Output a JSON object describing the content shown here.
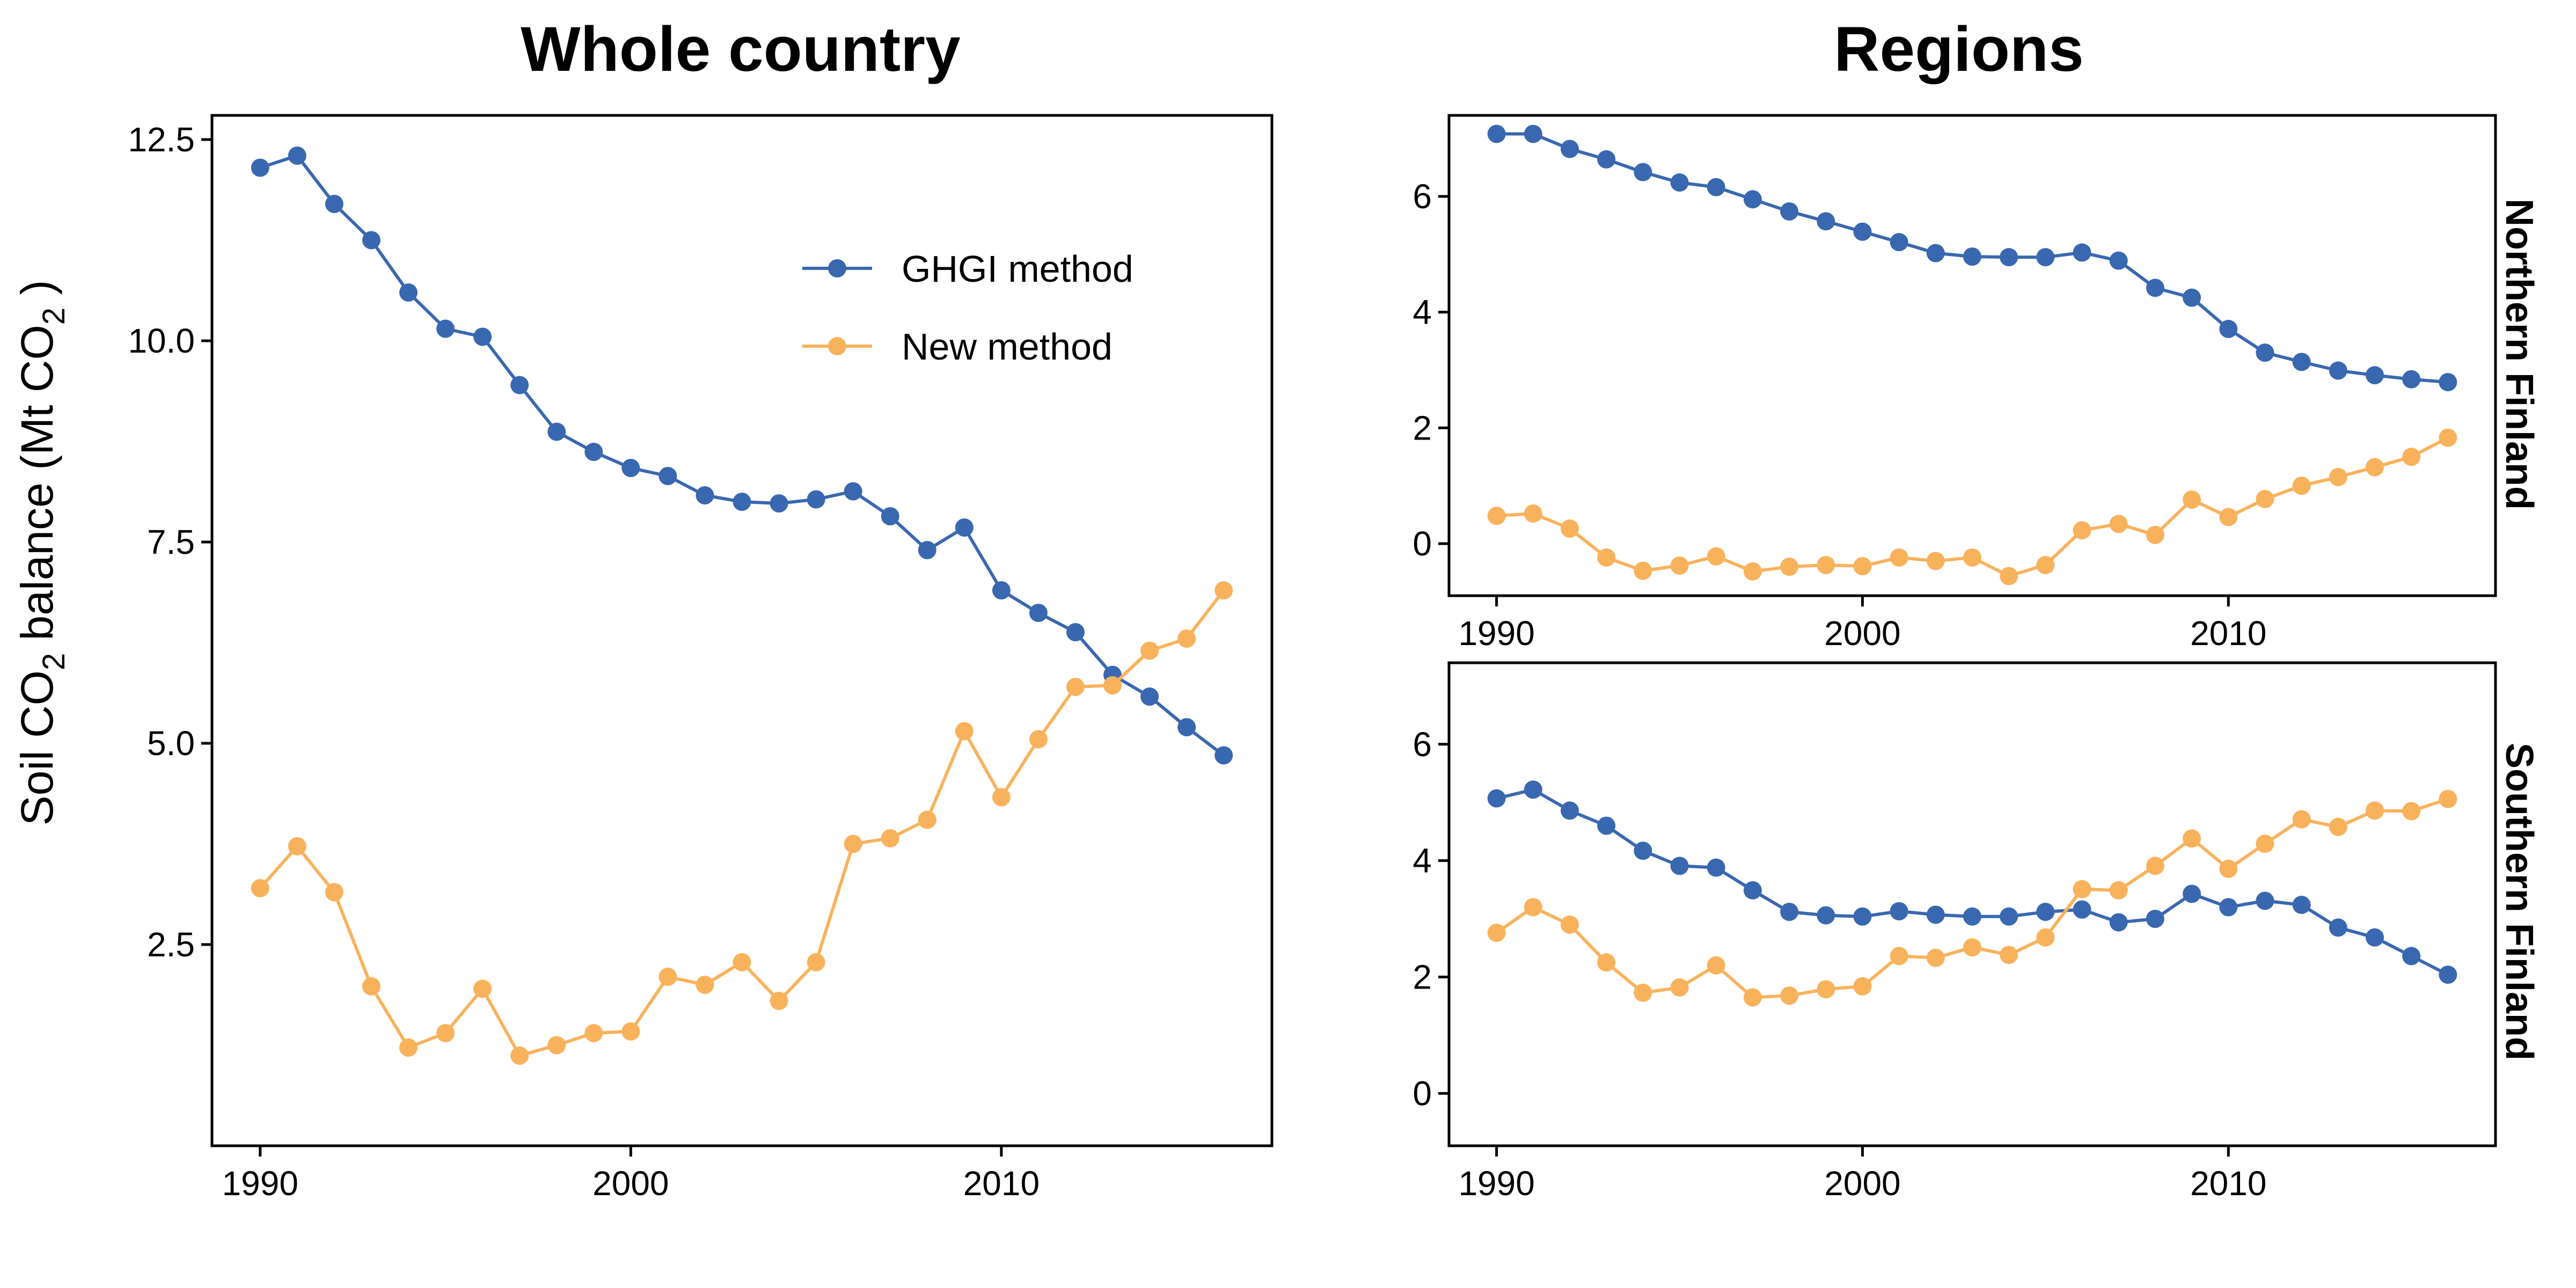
{
  "chart_data": [
    {
      "type": "line",
      "title": "Whole country",
      "ylabel": "Soil CO2 balance (Mt  CO2 )",
      "xlabel": "",
      "xlim": [
        1988.7,
        2017.3
      ],
      "ylim": [
        0.0,
        12.8
      ],
      "xticks": [
        1990,
        2000,
        2010
      ],
      "yticks": [
        2.5,
        5.0,
        7.5,
        10.0,
        12.5
      ],
      "ytick_labels": [
        "2.5",
        "5.0",
        "7.5",
        "10.0",
        "12.5"
      ],
      "legend_position": "top-right",
      "x": [
        1990,
        1991,
        1992,
        1993,
        1994,
        1995,
        1996,
        1997,
        1998,
        1999,
        2000,
        2001,
        2002,
        2003,
        2004,
        2005,
        2006,
        2007,
        2008,
        2009,
        2010,
        2011,
        2012,
        2013,
        2014,
        2015,
        2016
      ],
      "series": [
        {
          "name": "GHGI method",
          "color": "#3a68b0",
          "values": [
            12.15,
            12.3,
            11.7,
            11.25,
            10.6,
            10.15,
            10.05,
            9.45,
            8.87,
            8.62,
            8.42,
            8.32,
            8.08,
            8.0,
            7.98,
            8.03,
            8.13,
            7.82,
            7.4,
            7.68,
            6.9,
            6.62,
            6.38,
            5.85,
            5.58,
            5.2,
            4.85
          ]
        },
        {
          "name": "New method",
          "color": "#f9b25c",
          "values": [
            3.2,
            3.72,
            3.15,
            1.98,
            1.22,
            1.4,
            1.95,
            1.12,
            1.25,
            1.4,
            1.42,
            2.1,
            2.0,
            2.28,
            1.8,
            2.28,
            3.75,
            3.82,
            4.05,
            5.15,
            4.33,
            5.05,
            5.7,
            5.72,
            6.15,
            6.3,
            6.9
          ]
        }
      ]
    },
    {
      "type": "line",
      "group_title": "Regions",
      "title": "Northern Finland",
      "xlim": [
        1988.7,
        2017.3
      ],
      "ylim": [
        -0.9,
        7.4
      ],
      "xticks": [
        1990,
        2000,
        2010
      ],
      "yticks": [
        0,
        2,
        4,
        6
      ],
      "ytick_labels": [
        "0",
        "2",
        "4",
        "6"
      ],
      "x": [
        1990,
        1991,
        1992,
        1993,
        1994,
        1995,
        1996,
        1997,
        1998,
        1999,
        2000,
        2001,
        2002,
        2003,
        2004,
        2005,
        2006,
        2007,
        2008,
        2009,
        2010,
        2011,
        2012,
        2013,
        2014,
        2015,
        2016
      ],
      "series": [
        {
          "name": "GHGI method",
          "color": "#3a68b0",
          "values": [
            7.08,
            7.08,
            6.82,
            6.64,
            6.42,
            6.24,
            6.16,
            5.95,
            5.74,
            5.57,
            5.39,
            5.21,
            5.02,
            4.96,
            4.95,
            4.95,
            5.03,
            4.89,
            4.42,
            4.25,
            3.71,
            3.3,
            3.14,
            2.99,
            2.91,
            2.84,
            2.79
          ]
        },
        {
          "name": "New method",
          "color": "#f9b25c",
          "values": [
            0.48,
            0.52,
            0.26,
            -0.24,
            -0.47,
            -0.38,
            -0.22,
            -0.48,
            -0.4,
            -0.37,
            -0.39,
            -0.24,
            -0.3,
            -0.24,
            -0.56,
            -0.37,
            0.23,
            0.34,
            0.15,
            0.76,
            0.46,
            0.77,
            1.0,
            1.15,
            1.32,
            1.5,
            1.83
          ]
        }
      ]
    },
    {
      "type": "line",
      "group_title": "Regions",
      "title": "Southern Finland",
      "xlim": [
        1988.7,
        2017.3
      ],
      "ylim": [
        -0.9,
        7.4
      ],
      "xticks": [
        1990,
        2000,
        2010
      ],
      "yticks": [
        0,
        2,
        4,
        6
      ],
      "ytick_labels": [
        "0",
        "2",
        "4",
        "6"
      ],
      "x": [
        1990,
        1991,
        1992,
        1993,
        1994,
        1995,
        1996,
        1997,
        1998,
        1999,
        2000,
        2001,
        2002,
        2003,
        2004,
        2005,
        2006,
        2007,
        2008,
        2009,
        2010,
        2011,
        2012,
        2013,
        2014,
        2015,
        2016
      ],
      "series": [
        {
          "name": "GHGI method",
          "color": "#3a68b0",
          "values": [
            5.07,
            5.22,
            4.86,
            4.6,
            4.17,
            3.91,
            3.88,
            3.49,
            3.12,
            3.06,
            3.04,
            3.13,
            3.07,
            3.04,
            3.04,
            3.12,
            3.16,
            2.94,
            3.0,
            3.43,
            3.2,
            3.31,
            3.24,
            2.85,
            2.68,
            2.36,
            2.04
          ]
        },
        {
          "name": "New method",
          "color": "#f9b25c",
          "values": [
            2.76,
            3.2,
            2.9,
            2.25,
            1.73,
            1.82,
            2.2,
            1.65,
            1.68,
            1.79,
            1.84,
            2.36,
            2.33,
            2.51,
            2.38,
            2.68,
            3.51,
            3.49,
            3.91,
            4.38,
            3.86,
            4.29,
            4.71,
            4.58,
            4.86,
            4.85,
            5.06
          ]
        }
      ]
    }
  ]
}
